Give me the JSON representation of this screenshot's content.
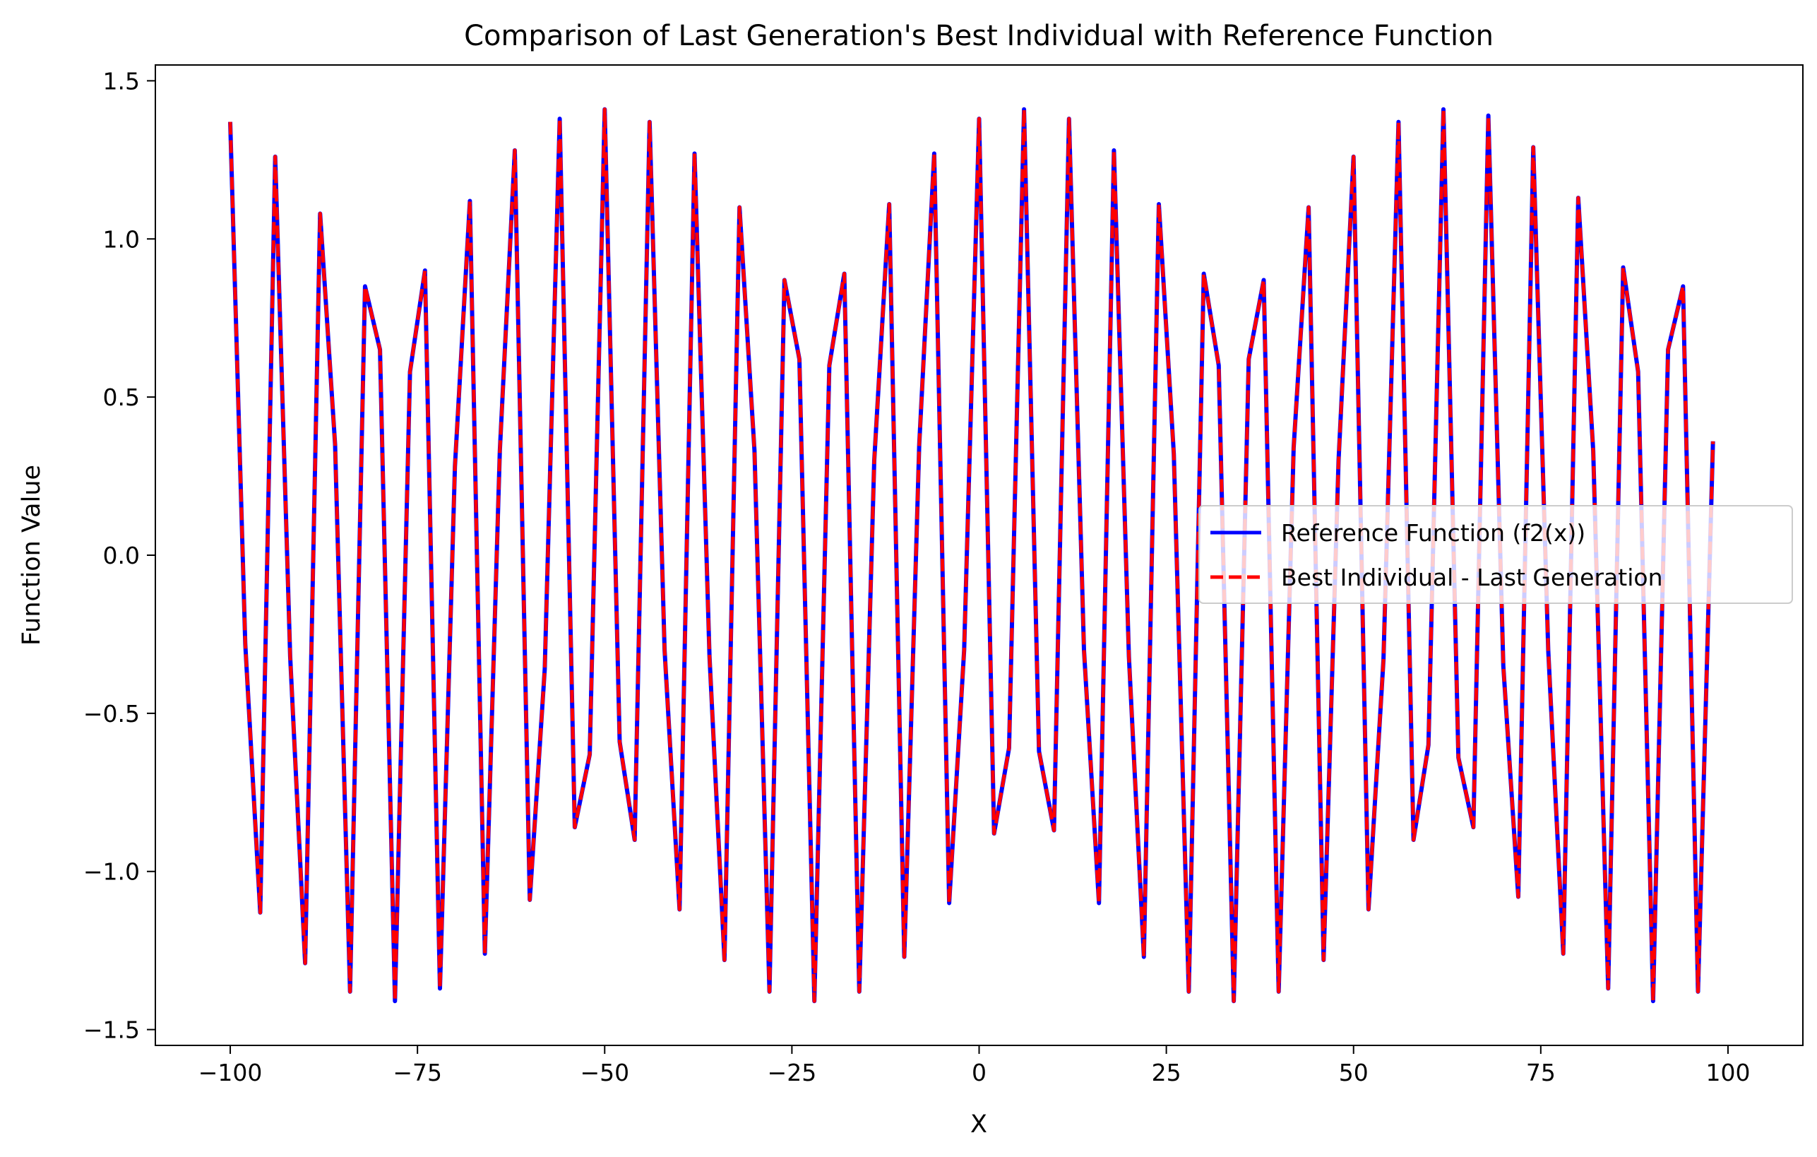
{
  "chart_data": {
    "type": "line",
    "title": "Comparison of Last Generation's Best Individual with Reference Function",
    "xlabel": "X",
    "ylabel": "Function Value",
    "xlim": [
      -110,
      110
    ],
    "ylim": [
      -1.55,
      1.55
    ],
    "xticks": [
      -100,
      -75,
      -50,
      -25,
      0,
      25,
      50,
      75,
      100
    ],
    "xtick_labels": [
      "−100",
      "−75",
      "−50",
      "−25",
      "0",
      "25",
      "50",
      "75",
      "100"
    ],
    "yticks": [
      -1.5,
      -1.0,
      -0.5,
      0.0,
      0.5,
      1.0,
      1.5
    ],
    "ytick_labels": [
      "−1.5",
      "−1.0",
      "−0.5",
      "0.0",
      "0.5",
      "1.0",
      "1.5"
    ],
    "grid": false,
    "legend_position": "center-right",
    "x_start": -100,
    "x_end": 100,
    "x_step": 2,
    "series": [
      {
        "name": "Reference Function (f2(x))",
        "color": "#0000ff",
        "style": "solid",
        "y": [
          1.37,
          -0.28,
          -1.13,
          1.26,
          -0.32,
          -1.29,
          1.08,
          0.35,
          -1.38,
          0.85,
          0.65,
          -1.41,
          0.58,
          0.9,
          -1.37,
          0.28,
          1.12,
          -1.26,
          0.33,
          1.28,
          -1.09,
          -0.36,
          1.38,
          -0.86,
          -0.63,
          1.41,
          -0.59,
          -0.9,
          1.37,
          -0.3,
          -1.12,
          1.27,
          -0.32,
          -1.28,
          1.1,
          0.33,
          -1.38,
          0.87,
          0.62,
          -1.41,
          0.6,
          0.89,
          -1.38,
          0.3,
          1.11,
          -1.27,
          0.35,
          1.27,
          -1.1,
          -0.3,
          1.38,
          -0.88,
          -0.61,
          1.41,
          -0.62,
          -0.87,
          1.38,
          -0.3,
          -1.1,
          1.28,
          -0.32,
          -1.27,
          1.11,
          0.32,
          -1.38,
          0.89,
          0.6,
          -1.41,
          0.62,
          0.87,
          -1.38,
          0.34,
          1.1,
          -1.28,
          0.3,
          1.26,
          -1.12,
          -0.33,
          1.37,
          -0.9,
          -0.6,
          1.41,
          -0.64,
          -0.86,
          1.39,
          -0.35,
          -1.08,
          1.29,
          -0.3,
          -1.26,
          1.13,
          0.33,
          -1.37,
          0.91,
          0.58,
          -1.41,
          0.65,
          0.85,
          -1.38,
          0.36
        ]
      },
      {
        "name": "Best Individual - Last Generation",
        "color": "#ff0000",
        "style": "dashed",
        "y": [
          1.37,
          -0.28,
          -1.13,
          1.26,
          -0.32,
          -1.29,
          1.08,
          0.35,
          -1.38,
          0.85,
          0.65,
          -1.41,
          0.58,
          0.9,
          -1.37,
          0.28,
          1.12,
          -1.26,
          0.33,
          1.28,
          -1.09,
          -0.36,
          1.38,
          -0.86,
          -0.63,
          1.41,
          -0.59,
          -0.9,
          1.37,
          -0.3,
          -1.12,
          1.27,
          -0.32,
          -1.28,
          1.1,
          0.33,
          -1.38,
          0.87,
          0.62,
          -1.41,
          0.6,
          0.89,
          -1.38,
          0.3,
          1.11,
          -1.27,
          0.35,
          1.27,
          -1.1,
          -0.3,
          1.38,
          -0.88,
          -0.61,
          1.41,
          -0.62,
          -0.87,
          1.38,
          -0.3,
          -1.1,
          1.28,
          -0.32,
          -1.27,
          1.11,
          0.32,
          -1.38,
          0.89,
          0.6,
          -1.41,
          0.62,
          0.87,
          -1.38,
          0.34,
          1.1,
          -1.28,
          0.3,
          1.26,
          -1.12,
          -0.33,
          1.37,
          -0.9,
          -0.6,
          1.41,
          -0.64,
          -0.86,
          1.39,
          -0.35,
          -1.08,
          1.29,
          -0.3,
          -1.26,
          1.13,
          0.33,
          -1.37,
          0.91,
          0.58,
          -1.41,
          0.65,
          0.85,
          -1.38,
          0.36
        ]
      }
    ]
  }
}
